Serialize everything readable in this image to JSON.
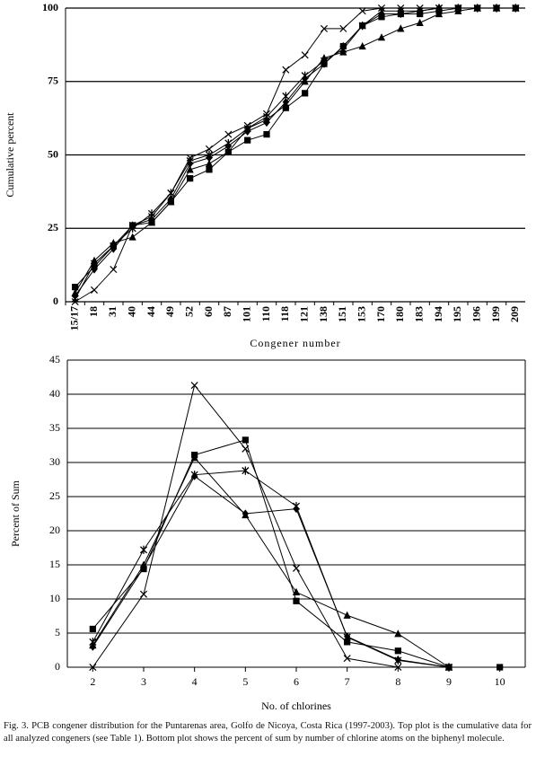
{
  "chart_data": [
    {
      "type": "line",
      "ylabel": "Cumulative percent",
      "xlabel": "Congener number",
      "categories": [
        "15/17",
        "18",
        "31",
        "40",
        "44",
        "49",
        "52",
        "60",
        "87",
        "101",
        "110",
        "118",
        "121",
        "138",
        "151",
        "153",
        "170",
        "180",
        "183",
        "194",
        "195",
        "196",
        "199",
        "209"
      ],
      "ylim": [
        0,
        100
      ],
      "yticks": [
        0,
        25,
        50,
        75,
        100
      ],
      "grid": true,
      "series": [
        {
          "marker": "x",
          "color": "#000000",
          "values": [
            0,
            4,
            11,
            26,
            29,
            37,
            49,
            52,
            57,
            60,
            64,
            79,
            84,
            93,
            93,
            99,
            100,
            100,
            100,
            100,
            100,
            100,
            100,
            100
          ]
        },
        {
          "marker": "square",
          "color": "#000000",
          "values": [
            5,
            12,
            19,
            26,
            27,
            34,
            42,
            45,
            51,
            55,
            57,
            66,
            71,
            81,
            87,
            94,
            97,
            98,
            98,
            99,
            100,
            100,
            100,
            100
          ]
        },
        {
          "marker": "triangle",
          "color": "#000000",
          "values": [
            3,
            14,
            20,
            22,
            27,
            34,
            45,
            47,
            51,
            59,
            62,
            67,
            75,
            83,
            85,
            87,
            90,
            93,
            95,
            98,
            99,
            100,
            100,
            100
          ]
        },
        {
          "marker": "star",
          "color": "#000000",
          "values": [
            1,
            13,
            19,
            25,
            30,
            37,
            48,
            50,
            54,
            59,
            63,
            70,
            77,
            82,
            86,
            94,
            99,
            99,
            99,
            100,
            100,
            100,
            100,
            100
          ]
        },
        {
          "marker": "diamond",
          "color": "#000000",
          "values": [
            2,
            11,
            18,
            26,
            28,
            35,
            47,
            49,
            53,
            58,
            61,
            68,
            76,
            81,
            87,
            94,
            98,
            98,
            99,
            100,
            100,
            100,
            100,
            100
          ]
        }
      ]
    },
    {
      "type": "line",
      "ylabel": "Percent of Sum",
      "xlabel": "No. of chlorines",
      "x": [
        2,
        3,
        4,
        5,
        6,
        7,
        8,
        9,
        10
      ],
      "xlim": [
        1.5,
        10.5
      ],
      "xticks": [
        2,
        3,
        4,
        5,
        6,
        7,
        8,
        9,
        10
      ],
      "ylim": [
        0,
        45
      ],
      "yticks": [
        0,
        5,
        10,
        15,
        20,
        25,
        30,
        35,
        40,
        45
      ],
      "grid": true,
      "series": [
        {
          "marker": "x",
          "color": "#000000",
          "values": [
            0,
            10.7,
            41.3,
            32,
            14.5,
            1.3,
            0,
            0,
            null
          ]
        },
        {
          "marker": "square",
          "color": "#000000",
          "values": [
            5.6,
            14.4,
            31.1,
            33.3,
            9.7,
            3.7,
            2.4,
            0,
            0
          ]
        },
        {
          "marker": "triangle",
          "color": "#000000",
          "values": [
            3.2,
            15,
            30.7,
            22.3,
            11,
            7.6,
            4.9,
            0,
            null
          ]
        },
        {
          "marker": "star",
          "color": "#000000",
          "values": [
            3.7,
            17.2,
            28.2,
            28.8,
            23.6,
            4.4,
            1,
            0,
            null
          ]
        },
        {
          "marker": "diamond",
          "color": "#000000",
          "values": [
            3,
            14.6,
            28,
            22.5,
            23.2,
            4.5,
            1.1,
            0,
            null
          ]
        }
      ]
    }
  ],
  "caption": "Fig. 3.  PCB congener distribution for the Puntarenas area, Golfo de Nicoya, Costa Rica (1997-2003).  Top plot is the cumulative data for all analyzed congeners (see Table 1).  Bottom plot shows the percent of sum by number of chlorine atoms on the biphenyl molecule."
}
